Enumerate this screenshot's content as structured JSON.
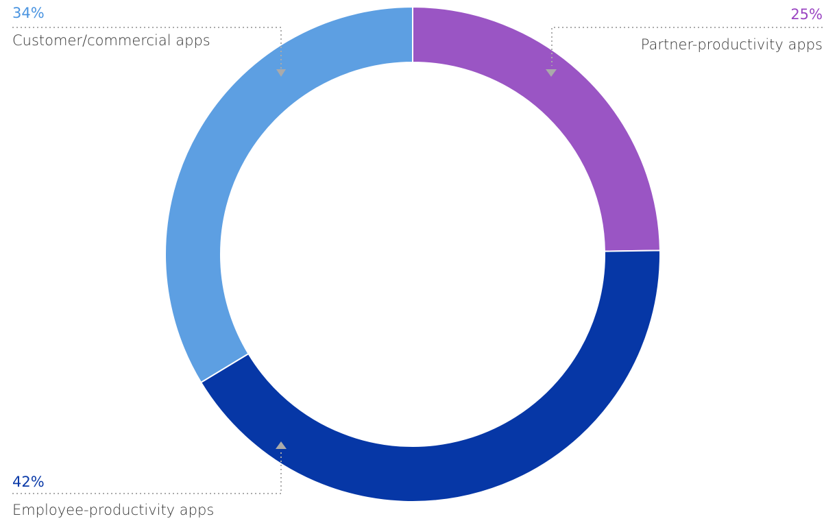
{
  "chart_data": {
    "type": "donut",
    "categories": [
      "Partner-productivity apps",
      "Employee-productivity apps",
      "Customer/commercial apps"
    ],
    "values": [
      25,
      42,
      34
    ],
    "value_labels": [
      "25%",
      "42%",
      "34%"
    ],
    "colors": [
      "#9a55c4",
      "#0637a6",
      "#5d9fe2"
    ]
  }
}
